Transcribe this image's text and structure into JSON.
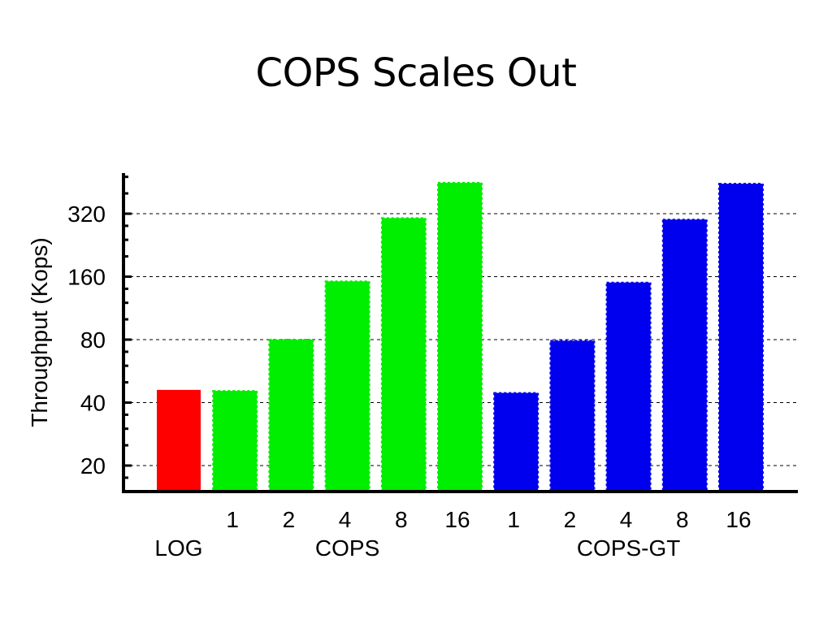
{
  "slide": {
    "title": "COPS Scales Out"
  },
  "colors": {
    "log": "#ff0000",
    "cops": "#00ee00",
    "cops_gt": "#0000ee",
    "grid": "#000000"
  },
  "chart_data": {
    "type": "bar",
    "title": "COPS Scales Out",
    "ylabel": "Throughput (Kops)",
    "xlabel": "",
    "yscale": "log2",
    "ylim": [
      14,
      480
    ],
    "yticks": [
      20,
      40,
      80,
      160,
      320
    ],
    "grid": "horizontal-dashed",
    "groups": [
      {
        "name": "LOG",
        "color": "#ff0000",
        "categories": [
          ""
        ],
        "values": [
          46
        ]
      },
      {
        "name": "COPS",
        "color": "#00ee00",
        "categories": [
          "1",
          "2",
          "4",
          "8",
          "16"
        ],
        "values": [
          45.5,
          80,
          152,
          305,
          450
        ]
      },
      {
        "name": "COPS-GT",
        "color": "#0000ee",
        "categories": [
          "1",
          "2",
          "4",
          "8",
          "16"
        ],
        "values": [
          44.5,
          79,
          150,
          300,
          445
        ]
      }
    ]
  }
}
